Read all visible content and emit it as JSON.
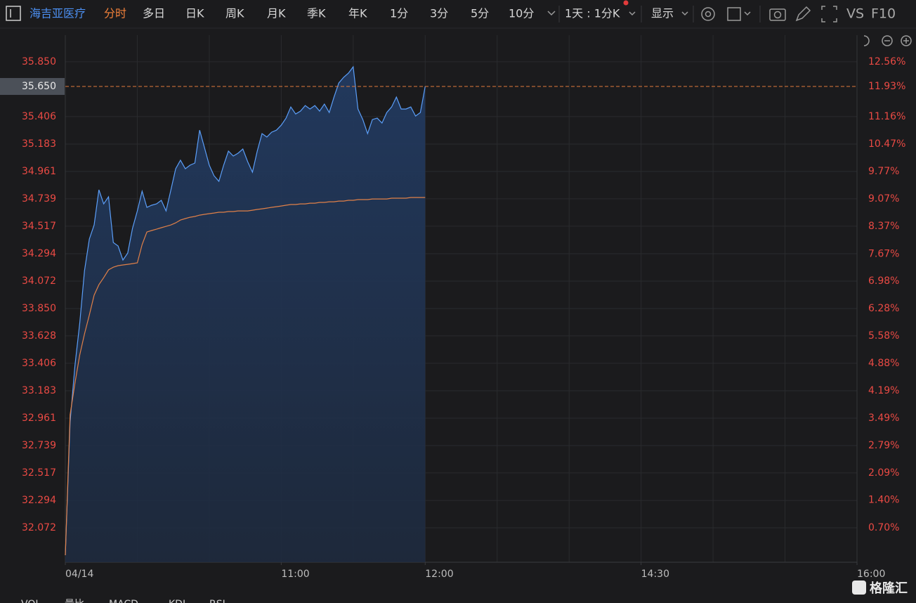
{
  "toolbar": {
    "ticker": "海吉亚医疗",
    "tabs": [
      "分时",
      "多日",
      "日K",
      "周K",
      "月K",
      "季K",
      "年K",
      "1分",
      "3分",
      "5分",
      "10分"
    ],
    "active_tab": 0,
    "period": "1天 : 1分K",
    "display": "显示",
    "vs": "VS",
    "f10": "F10"
  },
  "chart_data": {
    "type": "line",
    "ylim": [
      31.793,
      36.066
    ],
    "yticks": [
      {
        "value": 35.85,
        "label": "35.850"
      },
      35.406,
      35.183,
      34.961,
      34.739,
      34.517,
      34.294,
      34.072,
      {
        "value": 33.85,
        "label": "33.850"
      },
      33.628,
      33.406,
      33.183,
      32.961,
      32.739,
      32.517,
      32.294,
      32.072
    ],
    "y2lim": [
      -0.18,
      13.24
    ],
    "y2ticks": [
      {
        "value": 12.56,
        "label": "12.56%"
      },
      {
        "value": 11.16,
        "label": "11.16%"
      },
      {
        "value": 10.47,
        "label": "10.47%"
      },
      {
        "value": 9.77,
        "label": "9.77%"
      },
      {
        "value": 9.07,
        "label": "9.07%"
      },
      {
        "value": 8.37,
        "label": "8.37%"
      },
      {
        "value": 7.67,
        "label": "7.67%"
      },
      {
        "value": 6.98,
        "label": "6.98%"
      },
      {
        "value": 6.28,
        "label": "6.28%"
      },
      {
        "value": 5.58,
        "label": "5.58%"
      },
      {
        "value": 4.88,
        "label": "4.88%"
      },
      {
        "value": 4.19,
        "label": "4.19%"
      },
      {
        "value": 3.49,
        "label": "3.49%"
      },
      {
        "value": 2.79,
        "label": "2.79%"
      },
      {
        "value": 2.09,
        "label": "2.09%"
      },
      {
        "value": 1.4,
        "label": "1.40%"
      },
      {
        "value": 0.7,
        "label": "0.70%"
      }
    ],
    "xlim": [
      0,
      165
    ],
    "xticks": [
      {
        "value": 0,
        "label": "04/14"
      },
      {
        "value": 45,
        "label": "11:00"
      },
      {
        "value": 75,
        "label": "12:00"
      },
      {
        "value": 120,
        "label": "14:30"
      },
      {
        "value": 165,
        "label": "16:00"
      }
    ],
    "grid": true,
    "last_price": {
      "value": 35.65,
      "label": "35.650"
    },
    "last_pct": {
      "value": 11.93,
      "label": "11.93%"
    },
    "series": [
      {
        "color": "#5b9ef8",
        "fill": true,
        "values": [
          31.85,
          32.932,
          33.388,
          33.73,
          34.157,
          34.413,
          34.527,
          34.812,
          34.698,
          34.755,
          34.385,
          34.357,
          34.243,
          34.299,
          34.499,
          34.641,
          34.801,
          34.67,
          34.687,
          34.698,
          34.727,
          34.641,
          34.812,
          34.983,
          35.052,
          34.983,
          35.012,
          35.029,
          35.296,
          35.154,
          35.012,
          34.926,
          34.881,
          35.012,
          35.126,
          35.086,
          35.109,
          35.143,
          35.04,
          34.955,
          35.126,
          35.268,
          35.24,
          35.279,
          35.296,
          35.336,
          35.393,
          35.484,
          35.427,
          35.45,
          35.495,
          35.467,
          35.495,
          35.45,
          35.507,
          35.439,
          35.564,
          35.678,
          35.724,
          35.758,
          35.809,
          35.467,
          35.382,
          35.268,
          35.382,
          35.393,
          35.353,
          35.439,
          35.484,
          35.564,
          35.467,
          35.467,
          35.484,
          35.41,
          35.439,
          35.65
        ]
      },
      {
        "color": "#e08048",
        "fill": false,
        "values": [
          31.85,
          32.989,
          33.246,
          33.473,
          33.644,
          33.798,
          33.958,
          34.043,
          34.1,
          34.163,
          34.185,
          34.197,
          34.203,
          34.208,
          34.214,
          34.22,
          34.368,
          34.47,
          34.482,
          34.493,
          34.505,
          34.516,
          34.527,
          34.544,
          34.567,
          34.579,
          34.59,
          34.596,
          34.607,
          34.613,
          34.619,
          34.624,
          34.63,
          34.63,
          34.636,
          34.636,
          34.641,
          34.641,
          34.641,
          34.647,
          34.653,
          34.658,
          34.664,
          34.67,
          34.675,
          34.681,
          34.687,
          34.693,
          34.693,
          34.698,
          34.698,
          34.704,
          34.704,
          34.71,
          34.71,
          34.715,
          34.715,
          34.721,
          34.721,
          34.727,
          34.727,
          34.733,
          34.733,
          34.733,
          34.738,
          34.738,
          34.738,
          34.738,
          34.744,
          34.744,
          34.744,
          34.744,
          34.75,
          34.75,
          34.75,
          34.75
        ]
      }
    ]
  },
  "indicator_tabs": [
    "VOL",
    "量比",
    "MACD",
    "KDJ",
    "RSI"
  ],
  "watermark": "格隆汇"
}
